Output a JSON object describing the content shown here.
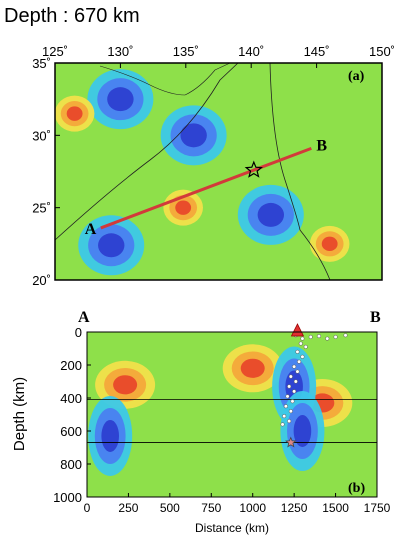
{
  "chart_data": [
    {
      "type": "heatmap",
      "title": "Depth : 670 km",
      "panel_label": "(a)",
      "x_ticks": [
        "125˚",
        "130˚",
        "135˚",
        "140˚",
        "145˚",
        "150˚"
      ],
      "y_ticks": [
        "35˚",
        "30˚",
        "25˚",
        "20˚"
      ],
      "xlim": [
        125,
        150
      ],
      "ylim": [
        20,
        35
      ],
      "profile": {
        "start_label": "A",
        "end_label": "B",
        "start": {
          "lon": 128.5,
          "lat": 23.6
        },
        "end": {
          "lon": 144.6,
          "lat": 29.1
        }
      },
      "event_star": {
        "lon": 140.2,
        "lat": 27.6
      },
      "anomalies": [
        {
          "lon": 135.6,
          "lat": 30.0,
          "sign": "fast"
        },
        {
          "lon": 130.0,
          "lat": 32.5,
          "sign": "fast"
        },
        {
          "lon": 129.3,
          "lat": 22.4,
          "sign": "fast"
        },
        {
          "lon": 141.5,
          "lat": 24.5,
          "sign": "fast"
        },
        {
          "lon": 126.5,
          "lat": 31.5,
          "sign": "slow"
        },
        {
          "lon": 134.8,
          "lat": 25.0,
          "sign": "slow"
        },
        {
          "lon": 146.0,
          "lat": 22.5,
          "sign": "slow"
        }
      ],
      "colors": {
        "fast": "#2d3fd0",
        "slow": "#e8482a",
        "neutral": "#8ee04a",
        "profile_line": "#d23a3a"
      }
    },
    {
      "type": "heatmap",
      "panel_label": "(b)",
      "xlabel": "Distance (km)",
      "ylabel": "Depth (km)",
      "corner_left": "A",
      "corner_right": "B",
      "x_ticks": [
        "0",
        "250",
        "500",
        "750",
        "1000",
        "1250",
        "1500",
        "1750"
      ],
      "y_ticks": [
        "0",
        "200",
        "400",
        "600",
        "800",
        "1000"
      ],
      "xlim": [
        0,
        1750
      ],
      "ylim": [
        1000,
        0
      ],
      "reference_depths": [
        410,
        670
      ],
      "station_triangle_distance": 1270,
      "event_star": {
        "distance": 1230,
        "depth": 670
      },
      "anomalies": [
        {
          "distance": 230,
          "depth": 320,
          "sign": "slow"
        },
        {
          "distance": 1000,
          "depth": 220,
          "sign": "slow"
        },
        {
          "distance": 1420,
          "depth": 430,
          "sign": "slow"
        },
        {
          "distance": 140,
          "depth": 630,
          "sign": "fast"
        },
        {
          "distance": 1250,
          "depth": 330,
          "sign": "fast"
        },
        {
          "distance": 1300,
          "depth": 600,
          "sign": "fast"
        }
      ],
      "seismicity": [
        [
          1260,
          20
        ],
        [
          1300,
          40
        ],
        [
          1350,
          30
        ],
        [
          1400,
          25
        ],
        [
          1450,
          40
        ],
        [
          1500,
          30
        ],
        [
          1560,
          20
        ],
        [
          1290,
          70
        ],
        [
          1320,
          90
        ],
        [
          1270,
          120
        ],
        [
          1300,
          150
        ],
        [
          1280,
          180
        ],
        [
          1250,
          210
        ],
        [
          1270,
          240
        ],
        [
          1230,
          270
        ],
        [
          1260,
          300
        ],
        [
          1220,
          330
        ],
        [
          1250,
          360
        ],
        [
          1210,
          390
        ],
        [
          1240,
          420
        ],
        [
          1200,
          450
        ],
        [
          1230,
          480
        ],
        [
          1190,
          510
        ],
        [
          1220,
          540
        ],
        [
          1180,
          560
        ]
      ]
    }
  ]
}
